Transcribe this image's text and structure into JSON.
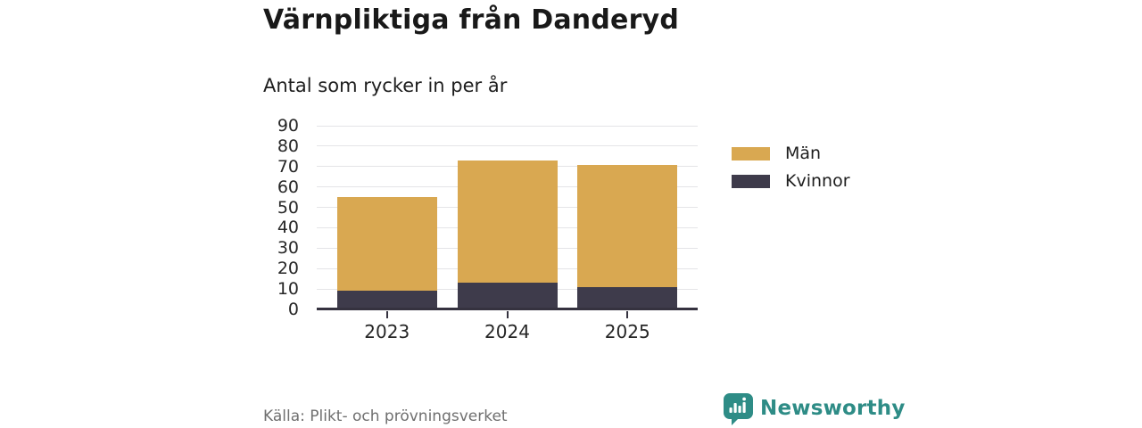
{
  "header": {
    "title": "Värnpliktiga från Danderyd",
    "subtitle": "Antal som rycker in per år"
  },
  "chart_data": {
    "type": "bar",
    "stacked": true,
    "title": "Värnpliktiga från Danderyd",
    "subtitle": "Antal som rycker in per år",
    "categories": [
      "2023",
      "2024",
      "2025"
    ],
    "series": [
      {
        "name": "Män",
        "color": "#d9a851",
        "values": [
          46,
          60,
          60
        ]
      },
      {
        "name": "Kvinnor",
        "color": "#3e3b4b",
        "values": [
          9,
          13,
          11
        ]
      }
    ],
    "stack_totals": [
      55,
      73,
      71
    ],
    "ylim": [
      0,
      90
    ],
    "ytick_step": 10,
    "grid": true,
    "legend_position": "right",
    "xlabel": "",
    "ylabel": ""
  },
  "footer": {
    "source": "Källa: Plikt- och prövningsverket",
    "brand": "Newsworthy"
  },
  "colors": {
    "men_bar": "#d9a851",
    "women_bar": "#3e3b4b",
    "gridline": "#e4e4e7",
    "axis": "#35323f",
    "brand_teal": "#2e8c86",
    "source_gray": "#6f6f6f",
    "title_text": "#191919"
  }
}
